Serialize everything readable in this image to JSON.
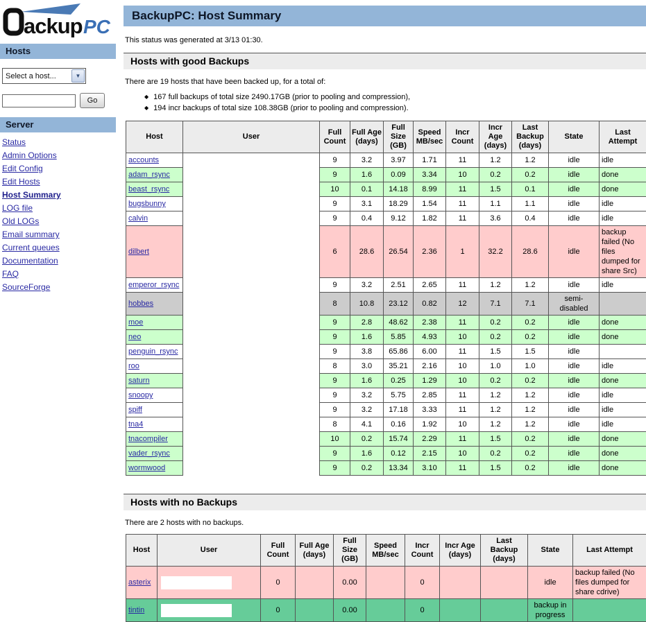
{
  "logo": {
    "name": "BackupPC",
    "text_black": "ackup",
    "text_blue": "PC"
  },
  "icons": {
    "bullet": "◆",
    "select_arrow": "▼"
  },
  "colors": {
    "band_blue": "#93b5d8",
    "section_gray": "#ececec",
    "row_good_green": "#ccffcc",
    "row_fail_pink": "#ffcccc",
    "row_disabled_gray": "#cccccc",
    "row_progress_green": "#66cc99",
    "link_blue": "#2929a3"
  },
  "sidebar": {
    "hosts_header": "Hosts",
    "host_select_value": "Select a host...",
    "search_value": "",
    "go_label": "Go",
    "server_header": "Server",
    "links": [
      {
        "label": "Status"
      },
      {
        "label": "Admin Options"
      },
      {
        "label": "Edit Config"
      },
      {
        "label": "Edit Hosts"
      },
      {
        "label": "Host Summary",
        "active": true
      },
      {
        "label": "LOG file"
      },
      {
        "label": "Old LOGs"
      },
      {
        "label": "Email summary"
      },
      {
        "label": "Current queues"
      },
      {
        "label": "Documentation"
      },
      {
        "label": "FAQ"
      },
      {
        "label": "SourceForge"
      }
    ]
  },
  "header": {
    "title": "BackupPC: Host Summary"
  },
  "status_line": "This status was generated at 3/13 01:30.",
  "good_section": {
    "title": "Hosts with good Backups",
    "intro": "There are 19 hosts that have been backed up, for a total of:",
    "bullets": [
      "167 full backups of total size 2490.17GB (prior to pooling and compression),",
      "194 incr backups of total size 108.38GB (prior to pooling and compression)."
    ],
    "columns": [
      "Host",
      "User",
      "Full Count",
      "Full Age (days)",
      "Full Size (GB)",
      "Speed MB/sec",
      "Incr Count",
      "Incr Age (days)",
      "Last Backup (days)",
      "State",
      "Last Attempt"
    ],
    "rows": [
      {
        "host": "accounts",
        "full_count": "9",
        "full_age": "3.2",
        "full_size": "3.97",
        "speed": "1.71",
        "incr_count": "11",
        "incr_age": "1.2",
        "last_backup": "1.2",
        "state": "idle",
        "last_attempt": "idle",
        "color": "white"
      },
      {
        "host": "adam_rsync",
        "full_count": "9",
        "full_age": "1.6",
        "full_size": "0.09",
        "speed": "3.34",
        "incr_count": "10",
        "incr_age": "0.2",
        "last_backup": "0.2",
        "state": "idle",
        "last_attempt": "done",
        "color": "green"
      },
      {
        "host": "beast_rsync",
        "full_count": "10",
        "full_age": "0.1",
        "full_size": "14.18",
        "speed": "8.99",
        "incr_count": "11",
        "incr_age": "1.5",
        "last_backup": "0.1",
        "state": "idle",
        "last_attempt": "done",
        "color": "green"
      },
      {
        "host": "bugsbunny",
        "full_count": "9",
        "full_age": "3.1",
        "full_size": "18.29",
        "speed": "1.54",
        "incr_count": "11",
        "incr_age": "1.1",
        "last_backup": "1.1",
        "state": "idle",
        "last_attempt": "idle",
        "color": "white"
      },
      {
        "host": "calvin",
        "full_count": "9",
        "full_age": "0.4",
        "full_size": "9.12",
        "speed": "1.82",
        "incr_count": "11",
        "incr_age": "3.6",
        "last_backup": "0.4",
        "state": "idle",
        "last_attempt": "idle",
        "color": "white"
      },
      {
        "host": "dilbert",
        "full_count": "6",
        "full_age": "28.6",
        "full_size": "26.54",
        "speed": "2.36",
        "incr_count": "1",
        "incr_age": "32.2",
        "last_backup": "28.6",
        "state": "idle",
        "last_attempt": "backup failed (No files dumped for share Src)",
        "color": "pink"
      },
      {
        "host": "emperor_rsync",
        "full_count": "9",
        "full_age": "3.2",
        "full_size": "2.51",
        "speed": "2.65",
        "incr_count": "11",
        "incr_age": "1.2",
        "last_backup": "1.2",
        "state": "idle",
        "last_attempt": "idle",
        "color": "white"
      },
      {
        "host": "hobbes",
        "full_count": "8",
        "full_age": "10.8",
        "full_size": "23.12",
        "speed": "0.82",
        "incr_count": "12",
        "incr_age": "7.1",
        "last_backup": "7.1",
        "state": "semi-disabled",
        "last_attempt": "",
        "color": "gray"
      },
      {
        "host": "moe",
        "full_count": "9",
        "full_age": "2.8",
        "full_size": "48.62",
        "speed": "2.38",
        "incr_count": "11",
        "incr_age": "0.2",
        "last_backup": "0.2",
        "state": "idle",
        "last_attempt": "done",
        "color": "green"
      },
      {
        "host": "neo",
        "full_count": "9",
        "full_age": "1.6",
        "full_size": "5.85",
        "speed": "4.93",
        "incr_count": "10",
        "incr_age": "0.2",
        "last_backup": "0.2",
        "state": "idle",
        "last_attempt": "done",
        "color": "green"
      },
      {
        "host": "penguin_rsync",
        "full_count": "9",
        "full_age": "3.8",
        "full_size": "65.86",
        "speed": "6.00",
        "incr_count": "11",
        "incr_age": "1.5",
        "last_backup": "1.5",
        "state": "idle",
        "last_attempt": "",
        "color": "white"
      },
      {
        "host": "roo",
        "full_count": "8",
        "full_age": "3.0",
        "full_size": "35.21",
        "speed": "2.16",
        "incr_count": "10",
        "incr_age": "1.0",
        "last_backup": "1.0",
        "state": "idle",
        "last_attempt": "idle",
        "color": "white"
      },
      {
        "host": "saturn",
        "full_count": "9",
        "full_age": "1.6",
        "full_size": "0.25",
        "speed": "1.29",
        "incr_count": "10",
        "incr_age": "0.2",
        "last_backup": "0.2",
        "state": "idle",
        "last_attempt": "done",
        "color": "green"
      },
      {
        "host": "snoopy",
        "full_count": "9",
        "full_age": "3.2",
        "full_size": "5.75",
        "speed": "2.85",
        "incr_count": "11",
        "incr_age": "1.2",
        "last_backup": "1.2",
        "state": "idle",
        "last_attempt": "idle",
        "color": "white"
      },
      {
        "host": "spiff",
        "full_count": "9",
        "full_age": "3.2",
        "full_size": "17.18",
        "speed": "3.33",
        "incr_count": "11",
        "incr_age": "1.2",
        "last_backup": "1.2",
        "state": "idle",
        "last_attempt": "idle",
        "color": "white"
      },
      {
        "host": "tna4",
        "full_count": "8",
        "full_age": "4.1",
        "full_size": "0.16",
        "speed": "1.92",
        "incr_count": "10",
        "incr_age": "1.2",
        "last_backup": "1.2",
        "state": "idle",
        "last_attempt": "idle",
        "color": "white"
      },
      {
        "host": "tnacompiler",
        "full_count": "10",
        "full_age": "0.2",
        "full_size": "15.74",
        "speed": "2.29",
        "incr_count": "11",
        "incr_age": "1.5",
        "last_backup": "0.2",
        "state": "idle",
        "last_attempt": "done",
        "color": "green"
      },
      {
        "host": "vader_rsync",
        "full_count": "9",
        "full_age": "1.6",
        "full_size": "0.12",
        "speed": "2.15",
        "incr_count": "10",
        "incr_age": "0.2",
        "last_backup": "0.2",
        "state": "idle",
        "last_attempt": "done",
        "color": "green"
      },
      {
        "host": "wormwood",
        "full_count": "9",
        "full_age": "0.2",
        "full_size": "13.34",
        "speed": "3.10",
        "incr_count": "11",
        "incr_age": "1.5",
        "last_backup": "0.2",
        "state": "idle",
        "last_attempt": "done",
        "color": "green"
      }
    ]
  },
  "none_section": {
    "title": "Hosts with no Backups",
    "intro": "There are 2 hosts with no backups.",
    "columns": [
      "Host",
      "User",
      "Full Count",
      "Full Age (days)",
      "Full Size (GB)",
      "Speed MB/sec",
      "Incr Count",
      "Incr Age (days)",
      "Last Backup (days)",
      "State",
      "Last Attempt"
    ],
    "rows": [
      {
        "host": "asterix",
        "user_box": true,
        "full_count": "0",
        "full_age": "",
        "full_size": "0.00",
        "speed": "",
        "incr_count": "0",
        "incr_age": "",
        "last_backup": "",
        "state": "idle",
        "last_attempt": "backup failed (No files dumped for share cdrive)",
        "color": "pink"
      },
      {
        "host": "tintin",
        "user_box": true,
        "full_count": "0",
        "full_age": "",
        "full_size": "0.00",
        "speed": "",
        "incr_count": "0",
        "incr_age": "",
        "last_backup": "",
        "state": "backup in progress",
        "last_attempt": "",
        "color": "active"
      }
    ]
  }
}
